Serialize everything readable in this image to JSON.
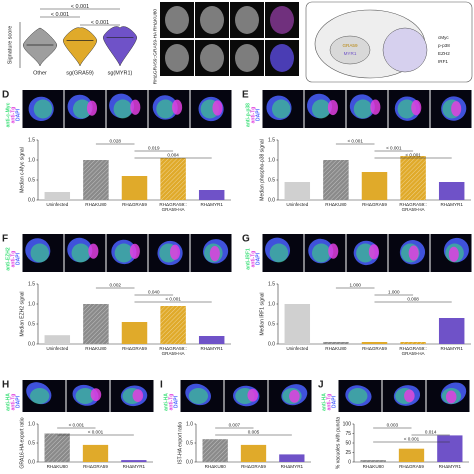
{
  "chart_data": [
    {
      "type": "violin",
      "ylabel": "Signature score",
      "categories": [
        "Other",
        "sg(GRA59)",
        "sg(MYR1)"
      ],
      "values": [
        0.0,
        0.3,
        0.5
      ],
      "ylim": [
        -1.5,
        1.5
      ],
      "colors": [
        "#9e9e9e",
        "#e0aa2a",
        "#6f52c8"
      ],
      "comparisons": [
        {
          "pair": [
            "Other",
            "sg(MYR1)"
          ],
          "label": "< 0.001"
        },
        {
          "pair": [
            "Other",
            "sg(GRA59)"
          ],
          "label": "< 0.001"
        },
        {
          "pair": [
            "sg(GRA59)",
            "sg(MYR1)"
          ],
          "label": "< 0.001"
        }
      ]
    },
    {
      "type": "bar",
      "label": "D",
      "stain": [
        "anti-c-Myc",
        "anti-Tg",
        "DAPI"
      ],
      "stain_colors": [
        "#3fe07a",
        "#e040e0",
        "#4a60ff"
      ],
      "ylabel": "Median c-Myc signal",
      "categories": [
        "Uninfected",
        "RHΔKU80",
        "RHΔGRA59",
        "RHΔGRA59::GRA59-HA",
        "RHΔMYR1"
      ],
      "values": [
        0.2,
        1.0,
        0.6,
        1.05,
        0.25
      ],
      "colors": [
        "#d0d0d0",
        "#8a8a8a",
        "#e0aa2a",
        "#e0aa2a",
        "#6f52c8"
      ],
      "hatched": [
        false,
        true,
        false,
        true,
        false
      ],
      "ylim": [
        0,
        1.5
      ],
      "yticks": [
        {
          "value": 0,
          "label": "0.0"
        },
        0.5,
        {
          "value": 1,
          "label": "1.0"
        },
        1.5
      ],
      "comparisons": [
        {
          "pair": [
            "RHΔKU80",
            "RHΔGRA59"
          ],
          "label": "0.028"
        },
        {
          "pair": [
            "RHΔGRA59",
            "RHΔGRA59::GRA59-HA"
          ],
          "label": "0.019"
        },
        {
          "pair": [
            "RHΔGRA59",
            "RHΔMYR1"
          ],
          "label": "0.004"
        }
      ]
    },
    {
      "type": "bar",
      "label": "E",
      "stain": [
        "anti-p-p38",
        "anti-Tg",
        "DAPI"
      ],
      "stain_colors": [
        "#3fe07a",
        "#e040e0",
        "#4a60ff"
      ],
      "ylabel": "Median phospho-p38 signal",
      "categories": [
        "Uninfected",
        "RHΔKU80",
        "RHΔGRA59",
        "RHΔGRA59::GRA59-HA",
        "RHΔMYR1"
      ],
      "values": [
        0.45,
        1.0,
        0.7,
        1.1,
        0.45
      ],
      "colors": [
        "#d0d0d0",
        "#8a8a8a",
        "#e0aa2a",
        "#e0aa2a",
        "#6f52c8"
      ],
      "hatched": [
        false,
        true,
        false,
        true,
        false
      ],
      "ylim": [
        0,
        1.5
      ],
      "yticks": [
        {
          "value": 0,
          "label": "0.0"
        },
        0.5,
        {
          "value": 1,
          "label": "1.0"
        },
        1.5
      ],
      "comparisons": [
        {
          "pair": [
            "RHΔKU80",
            "RHΔGRA59"
          ],
          "label": "< 0.001"
        },
        {
          "pair": [
            "RHΔGRA59",
            "RHΔGRA59::GRA59-HA"
          ],
          "label": "< 0.001"
        },
        {
          "pair": [
            "RHΔGRA59",
            "RHΔMYR1"
          ],
          "label": "< 0.001"
        }
      ]
    },
    {
      "type": "bar",
      "label": "F",
      "stain": [
        "anti-EZH2",
        "anti-Tg",
        "DAPI"
      ],
      "stain_colors": [
        "#3fe07a",
        "#e040e0",
        "#4a60ff"
      ],
      "ylabel": "Median EZH2 signal",
      "categories": [
        "Uninfected",
        "RHΔKU80",
        "RHΔGRA59",
        "RHΔGRA59::GRA59-HA",
        "RHΔMYR1"
      ],
      "values": [
        0.22,
        1.0,
        0.55,
        0.95,
        0.2
      ],
      "colors": [
        "#d0d0d0",
        "#8a8a8a",
        "#e0aa2a",
        "#e0aa2a",
        "#6f52c8"
      ],
      "hatched": [
        false,
        true,
        false,
        true,
        false
      ],
      "ylim": [
        0,
        1.5
      ],
      "yticks": [
        {
          "value": 0,
          "label": "0.0"
        },
        0.5,
        {
          "value": 1,
          "label": "1.0"
        },
        1.5
      ],
      "comparisons": [
        {
          "pair": [
            "RHΔKU80",
            "RHΔGRA59"
          ],
          "label": "0.002"
        },
        {
          "pair": [
            "RHΔGRA59",
            "RHΔGRA59::GRA59-HA"
          ],
          "label": "0.040"
        },
        {
          "pair": [
            "RHΔGRA59",
            "RHΔMYR1"
          ],
          "label": "< 0.001"
        }
      ]
    },
    {
      "type": "bar",
      "label": "G",
      "stain": [
        "anti-IRF1",
        "anti-Tg",
        "DAPI"
      ],
      "stain_colors": [
        "#3fe07a",
        "#e040e0",
        "#4a60ff"
      ],
      "ylabel": "Median IRF1 signal",
      "categories": [
        "Uninfected",
        "RHΔKU80",
        "RHΔGRA59",
        "RHΔGRA59::GRA59-HA",
        "RHΔMYR1"
      ],
      "values": [
        1.0,
        0.05,
        0.05,
        0.05,
        0.65
      ],
      "colors": [
        "#d0d0d0",
        "#8a8a8a",
        "#e0aa2a",
        "#e0aa2a",
        "#6f52c8"
      ],
      "hatched": [
        false,
        true,
        false,
        true,
        false
      ],
      "ylim": [
        0,
        1.5
      ],
      "yticks": [
        {
          "value": 0,
          "label": "0.0"
        },
        0.5,
        {
          "value": 1,
          "label": "1.0"
        },
        1.5
      ],
      "comparisons": [
        {
          "pair": [
            "RHΔKU80",
            "RHΔGRA59"
          ],
          "label": "1.000"
        },
        {
          "pair": [
            "RHΔGRA59",
            "RHΔGRA59::GRA59-HA"
          ],
          "label": "1.000"
        },
        {
          "pair": [
            "RHΔGRA59",
            "RHΔMYR1"
          ],
          "label": "0.008"
        }
      ]
    },
    {
      "type": "bar",
      "label": "H",
      "stain": [
        "anti-HA",
        "anti-Tg",
        "DAPI"
      ],
      "stain_colors": [
        "#3fe07a",
        "#e040e0",
        "#4a60ff"
      ],
      "ylabel": "GRA16-HA export ratio",
      "categories": [
        "RHΔKU80",
        "RHΔGRA59",
        "RHΔMYR1"
      ],
      "values": [
        0.75,
        0.45,
        0.05
      ],
      "colors": [
        "#8a8a8a",
        "#e0aa2a",
        "#6f52c8"
      ],
      "hatched": [
        true,
        false,
        false
      ],
      "ylim": [
        0,
        1
      ],
      "yticks": [
        {
          "value": 0,
          "label": "0.0"
        },
        0.5,
        {
          "value": 1,
          "label": "1.0"
        }
      ],
      "comparisons": [
        {
          "pair": [
            "RHΔKU80",
            "RHΔGRA59"
          ],
          "label": "< 0.001"
        },
        {
          "pair": [
            "RHΔKU80",
            "RHΔMYR1"
          ],
          "label": "< 0.001"
        }
      ]
    },
    {
      "type": "bar",
      "label": "I",
      "stain": [
        "anti-HA",
        "anti-Tg",
        "DAPI"
      ],
      "stain_colors": [
        "#3fe07a",
        "#e040e0",
        "#4a60ff"
      ],
      "ylabel": "IST-HA export ratio",
      "categories": [
        "RHΔKU80",
        "RHΔGRA59",
        "RHΔMYR1"
      ],
      "values": [
        0.6,
        0.45,
        0.2
      ],
      "colors": [
        "#8a8a8a",
        "#e0aa2a",
        "#6f52c8"
      ],
      "hatched": [
        true,
        false,
        false
      ],
      "ylim": [
        0,
        1
      ],
      "yticks": [
        {
          "value": 0,
          "label": "0.0"
        },
        0.5,
        {
          "value": 1,
          "label": "1.0"
        }
      ],
      "comparisons": [
        {
          "pair": [
            "RHΔKU80",
            "RHΔGRA59"
          ],
          "label": "0.007"
        },
        {
          "pair": [
            "RHΔKU80",
            "RHΔMYR1"
          ],
          "label": "0.005"
        }
      ]
    },
    {
      "type": "bar",
      "label": "J",
      "stain": [
        "anti-HA",
        "anti-Tg",
        "DAPI"
      ],
      "stain_colors": [
        "#3fe07a",
        "#e040e0",
        "#4a60ff"
      ],
      "ylabel": "% vacuoles with puncta",
      "categories": [
        "RHΔKU80",
        "RHΔGRA59",
        "RHΔMYR1"
      ],
      "values": [
        5,
        35,
        70
      ],
      "colors": [
        "#8a8a8a",
        "#e0aa2a",
        "#6f52c8"
      ],
      "hatched": [
        true,
        false,
        false
      ],
      "ylim": [
        0,
        100
      ],
      "yticks": [
        0,
        25,
        50,
        75,
        100
      ],
      "comparisons": [
        {
          "pair": [
            "RHΔKU80",
            "RHΔGRA59"
          ],
          "label": "0.003"
        },
        {
          "pair": [
            "RHΔGRA59",
            "RHΔMYR1"
          ],
          "label": "0.014"
        },
        {
          "pair": [
            "RHΔKU80",
            "RHΔMYR1"
          ],
          "label": "< 0.001"
        }
      ]
    }
  ],
  "micrographs": {
    "labels": [
      "RHΔKU80",
      "RHΔGRA59::GRA59-HA"
    ]
  },
  "diagram": {
    "labels": [
      "GRA59",
      "MYR1",
      "cMyc",
      "p-p38",
      "EZH2",
      "IRF1"
    ]
  }
}
